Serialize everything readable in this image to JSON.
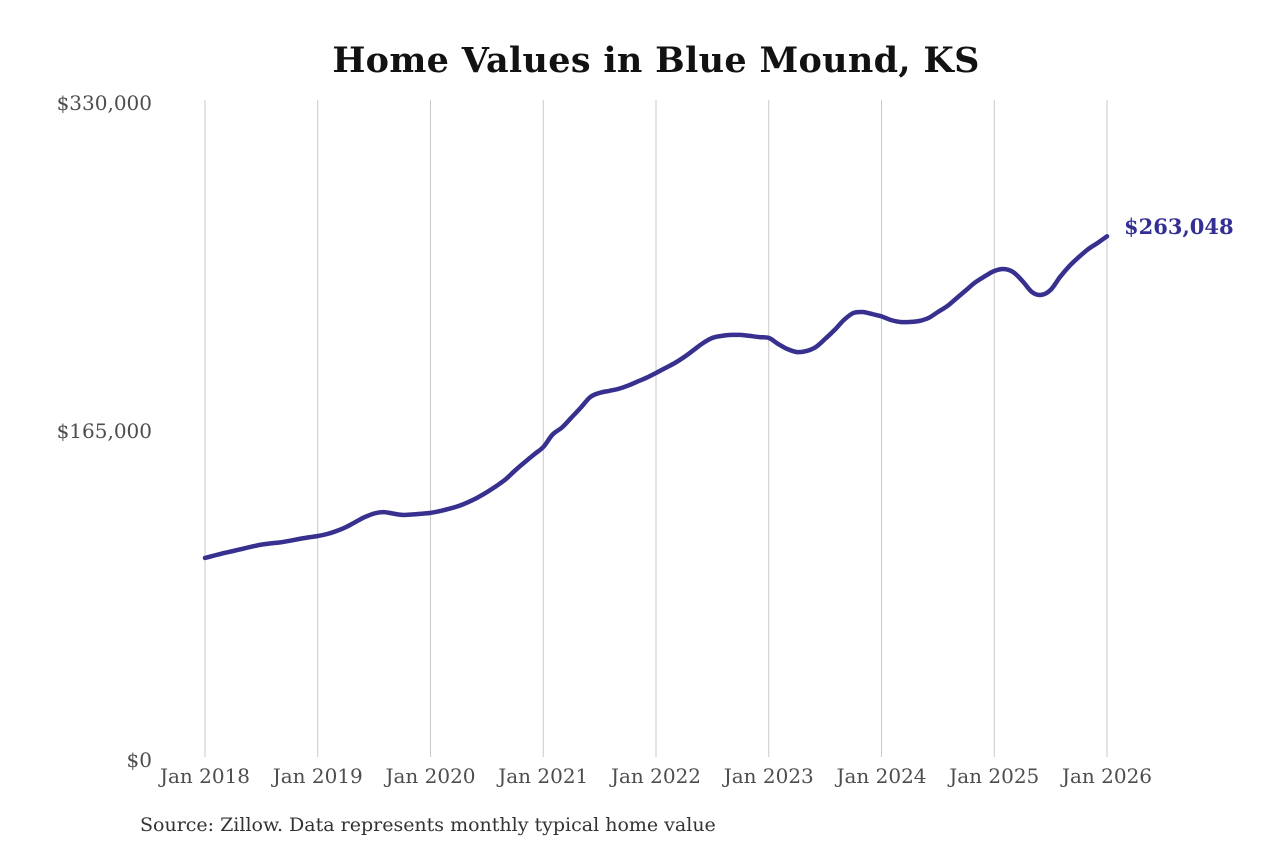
{
  "title": "Home Values in Blue Mound, KS",
  "end_label": "$263,048",
  "source_note": "Source: Zillow. Data represents monthly typical home value",
  "colors": {
    "line": "#37308f",
    "end_label": "#332f94",
    "gridline": "#c9c9c9",
    "axis_text": "#4d4d4d",
    "title_text": "#121212",
    "source_text": "#333333",
    "background": "#ffffff"
  },
  "chart_data": {
    "type": "line",
    "title": "Home Values in Blue Mound, KS",
    "xlabel": "",
    "ylabel": "",
    "x_tick_labels": [
      "Jan 2018",
      "Jan 2019",
      "Jan 2020",
      "Jan 2021",
      "Jan 2022",
      "Jan 2023",
      "Jan 2024",
      "Jan 2025",
      "Jan 2026"
    ],
    "y_tick_labels": [
      "$0",
      "$165,000",
      "$330,000"
    ],
    "ylim": [
      0,
      330000
    ],
    "grid": "vertical",
    "legend": "none",
    "annotation": "$263,048",
    "series": [
      {
        "name": "Monthly typical home value",
        "start": "Jan 2018",
        "end": "Jan 2026",
        "interval": "monthly",
        "final_value": 263048,
        "values": [
          101500,
          102700,
          103900,
          105000,
          106100,
          107200,
          108200,
          108800,
          109300,
          110100,
          111000,
          111800,
          112500,
          113500,
          115000,
          117000,
          119500,
          122000,
          123800,
          124500,
          123800,
          123100,
          123300,
          123700,
          124100,
          125000,
          126200,
          127600,
          129500,
          131800,
          134500,
          137600,
          141000,
          145400,
          149500,
          153400,
          157200,
          163500,
          167000,
          172000,
          177000,
          182300,
          184400,
          185400,
          186400,
          188000,
          190000,
          192000,
          194400,
          196900,
          199400,
          202400,
          205900,
          209400,
          212000,
          213000,
          213500,
          213500,
          213000,
          212400,
          212000,
          209000,
          206400,
          204900,
          205400,
          207400,
          211500,
          216000,
          221000,
          224500,
          225000,
          224000,
          222800,
          221000,
          220000,
          220000,
          220500,
          222000,
          225000,
          228000,
          232000,
          236000,
          240000,
          243000,
          245600,
          246600,
          245100,
          240600,
          235100,
          233600,
          236100,
          242600,
          248100,
          252600,
          256600,
          259700,
          263048
        ]
      }
    ]
  }
}
